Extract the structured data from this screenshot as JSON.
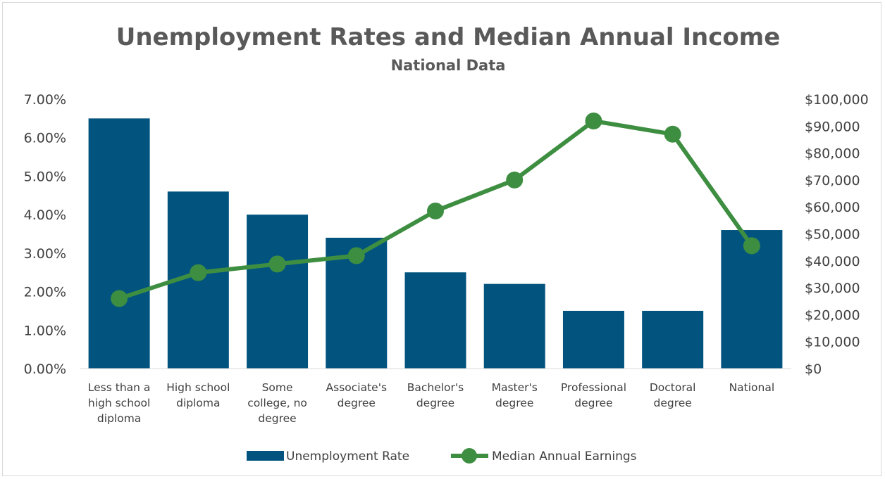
{
  "chart_data": {
    "type": "bar",
    "title": "Unemployment Rates and Median Annual Income",
    "subtitle": "National Data",
    "categories": [
      [
        "Less than a",
        "high school",
        "diploma"
      ],
      [
        "High school",
        "diploma"
      ],
      [
        "Some",
        "college, no",
        "degree"
      ],
      [
        "Associate's",
        "degree"
      ],
      [
        "Bachelor's",
        "degree"
      ],
      [
        "Master's",
        "degree"
      ],
      [
        "Professional",
        "degree"
      ],
      [
        "Doctoral",
        "degree"
      ],
      [
        "National"
      ]
    ],
    "series": [
      {
        "name": "Unemployment Rate",
        "type": "bar",
        "axis": "left",
        "color": "#02547F",
        "values": [
          0.065,
          0.046,
          0.04,
          0.034,
          0.025,
          0.022,
          0.015,
          0.015,
          0.036
        ]
      },
      {
        "name": "Median Annual Earnings",
        "type": "line",
        "axis": "right",
        "color": "#3E8E41",
        "values": [
          26000,
          35600,
          38800,
          41900,
          58500,
          70000,
          91900,
          87000,
          45600
        ]
      }
    ],
    "y_left": {
      "min": 0,
      "max": 0.07,
      "step": 0.01,
      "tick_labels": [
        "0.00%",
        "1.00%",
        "2.00%",
        "3.00%",
        "4.00%",
        "5.00%",
        "6.00%",
        "7.00%"
      ]
    },
    "y_right": {
      "min": 0,
      "max": 100000,
      "step": 10000,
      "tick_labels": [
        "$0",
        "$10,000",
        "$20,000",
        "$30,000",
        "$40,000",
        "$50,000",
        "$60,000",
        "$70,000",
        "$80,000",
        "$90,000",
        "$100,000"
      ]
    },
    "grid": false,
    "legend_position": "bottom"
  }
}
